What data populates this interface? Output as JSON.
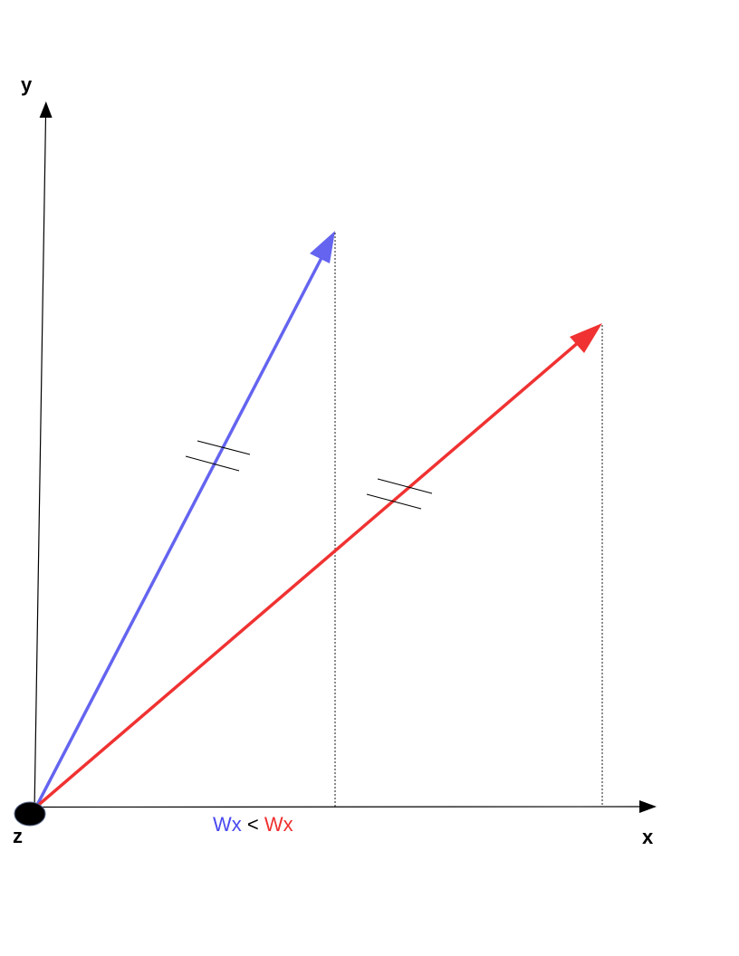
{
  "axes": {
    "y_label": "y",
    "x_label": "x",
    "z_label": "z"
  },
  "vectors": [
    {
      "name": "blue-vector",
      "color": "#6464f0"
    },
    {
      "name": "red-vector",
      "color": "#f03232"
    }
  ],
  "caption": {
    "left": "Wx",
    "operator": " < ",
    "right": "Wx",
    "left_color": "#4a4af0",
    "operator_color": "#000000",
    "right_color": "#f03030"
  },
  "colors": {
    "axis": "#000000",
    "projection": "#000000",
    "origin": "#000000"
  }
}
